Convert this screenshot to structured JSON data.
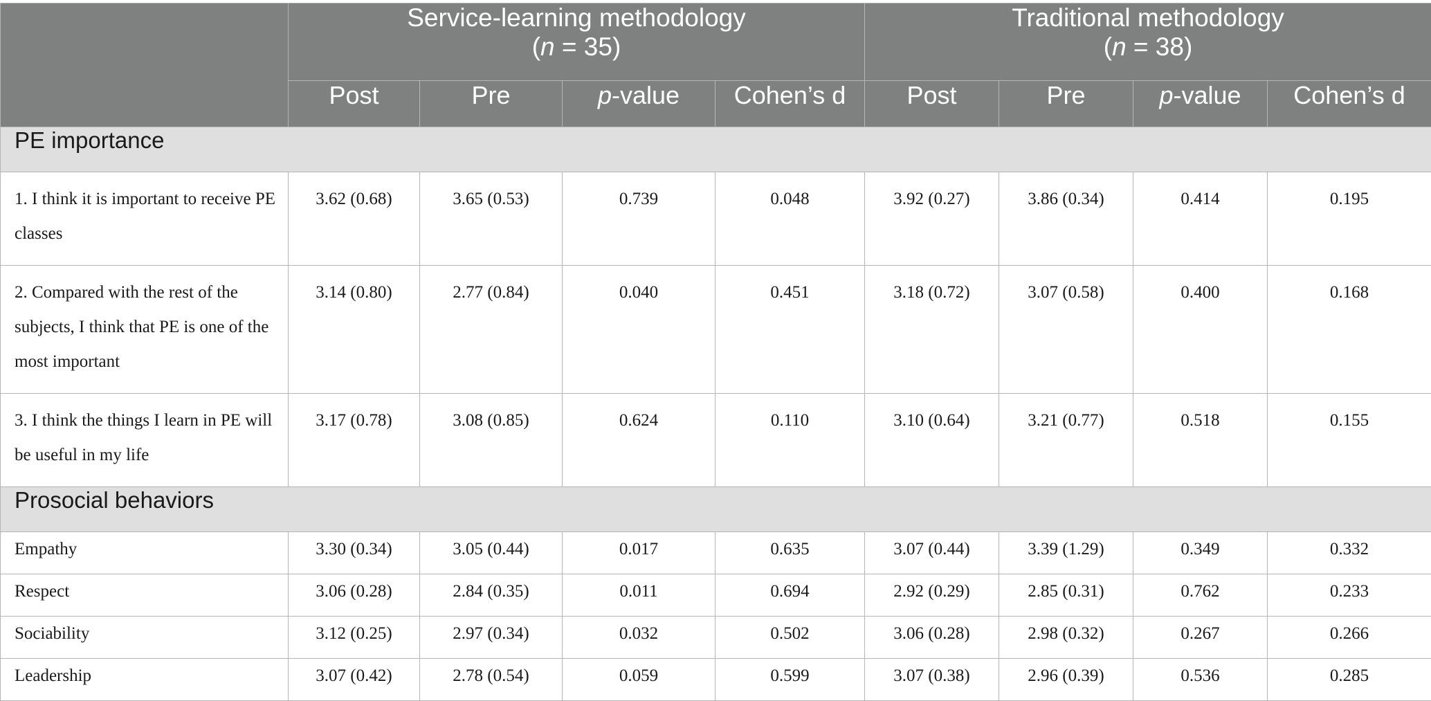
{
  "groups": [
    {
      "title": "Service-learning methodology",
      "n_prefix": "(",
      "n_var": "n",
      "n_suffix": " = 35)"
    },
    {
      "title": "Traditional methodology",
      "n_prefix": "(",
      "n_var": "n",
      "n_suffix": " = 38)"
    }
  ],
  "columns": {
    "post": "Post",
    "pre": "Pre",
    "pvalue_italic": "p",
    "pvalue_rest": "-value",
    "cohens": "Cohen’s d"
  },
  "sections": [
    {
      "title": "PE importance",
      "rows": [
        {
          "label": "1. I think it is important to receive PE classes",
          "values": [
            "3.62 (0.68)",
            "3.65 (0.53)",
            "0.739",
            "0.048",
            "3.92 (0.27)",
            "3.86 (0.34)",
            "0.414",
            "0.195"
          ]
        },
        {
          "label": "2. Compared with the rest of the subjects, I think that PE is one of the most important",
          "values": [
            "3.14 (0.80)",
            "2.77 (0.84)",
            "0.040",
            "0.451",
            "3.18 (0.72)",
            "3.07 (0.58)",
            "0.400",
            "0.168"
          ]
        },
        {
          "label": "3. I think the things I learn in PE will be useful in my life",
          "values": [
            "3.17 (0.78)",
            "3.08 (0.85)",
            "0.624",
            "0.110",
            "3.10 (0.64)",
            "3.21 (0.77)",
            "0.518",
            "0.155"
          ]
        }
      ]
    },
    {
      "title": "Prosocial behaviors",
      "rows": [
        {
          "label": "Empathy",
          "values": [
            "3.30 (0.34)",
            "3.05 (0.44)",
            "0.017",
            "0.635",
            "3.07 (0.44)",
            "3.39 (1.29)",
            "0.349",
            "0.332"
          ]
        },
        {
          "label": "Respect",
          "values": [
            "3.06 (0.28)",
            "2.84 (0.35)",
            "0.011",
            "0.694",
            "2.92 (0.29)",
            "2.85 (0.31)",
            "0.762",
            "0.233"
          ]
        },
        {
          "label": "Sociability",
          "values": [
            "3.12 (0.25)",
            "2.97 (0.34)",
            "0.032",
            "0.502",
            "3.06 (0.28)",
            "2.98 (0.32)",
            "0.267",
            "0.266"
          ]
        },
        {
          "label": "Leadership",
          "values": [
            "3.07 (0.42)",
            "2.78 (0.54)",
            "0.059",
            "0.599",
            "3.07 (0.38)",
            "2.96 (0.39)",
            "0.536",
            "0.285"
          ]
        }
      ]
    }
  ]
}
